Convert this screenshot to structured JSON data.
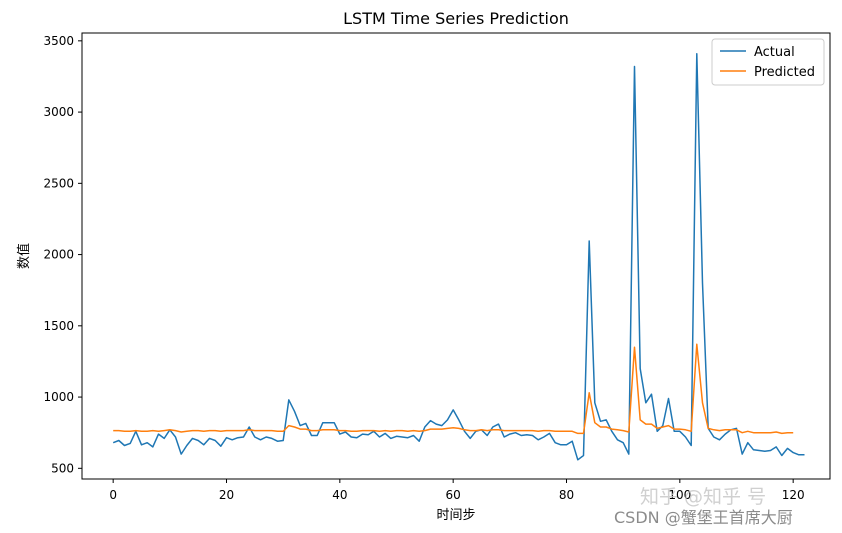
{
  "chart_data": {
    "type": "line",
    "title": "LSTM Time Series Prediction",
    "xlabel": "时间步",
    "ylabel": "数值",
    "xlim": [
      -5.5,
      126.5
    ],
    "ylim": [
      425,
      3555
    ],
    "xticks": [
      0,
      20,
      40,
      60,
      80,
      100,
      120
    ],
    "yticks": [
      500,
      1000,
      1500,
      2000,
      2500,
      3000,
      3500
    ],
    "grid": false,
    "legend_position": "top-right",
    "series": [
      {
        "name": "Actual",
        "color": "#1f77b4",
        "x_start": 0,
        "values": [
          680,
          695,
          660,
          675,
          760,
          665,
          680,
          650,
          740,
          710,
          770,
          720,
          600,
          660,
          710,
          695,
          665,
          710,
          695,
          655,
          715,
          700,
          715,
          720,
          790,
          720,
          700,
          720,
          710,
          690,
          695,
          980,
          900,
          800,
          815,
          730,
          730,
          820,
          820,
          820,
          740,
          755,
          720,
          715,
          740,
          735,
          760,
          720,
          745,
          710,
          725,
          720,
          715,
          730,
          690,
          790,
          835,
          810,
          800,
          840,
          910,
          840,
          760,
          710,
          760,
          770,
          730,
          790,
          810,
          720,
          740,
          750,
          730,
          735,
          730,
          700,
          720,
          745,
          680,
          665,
          665,
          690,
          560,
          590,
          2095,
          960,
          830,
          840,
          760,
          700,
          680,
          600,
          3320,
          1200,
          960,
          1020,
          760,
          800,
          990,
          760,
          760,
          720,
          660,
          3410,
          1800,
          780,
          720,
          700,
          740,
          770,
          780,
          600,
          680,
          630,
          625,
          620,
          625,
          650,
          590,
          640,
          610,
          595,
          595
        ]
      },
      {
        "name": "Predicted",
        "color": "#ff7f0e",
        "x_start": 0,
        "values": [
          765,
          765,
          760,
          760,
          765,
          760,
          760,
          765,
          760,
          765,
          770,
          765,
          755,
          760,
          765,
          765,
          760,
          765,
          765,
          760,
          765,
          765,
          765,
          765,
          770,
          765,
          765,
          765,
          765,
          760,
          760,
          800,
          790,
          775,
          775,
          765,
          765,
          770,
          770,
          770,
          765,
          765,
          760,
          760,
          765,
          765,
          765,
          760,
          765,
          760,
          765,
          765,
          760,
          765,
          760,
          765,
          775,
          775,
          775,
          780,
          785,
          780,
          770,
          765,
          765,
          770,
          765,
          770,
          770,
          765,
          765,
          765,
          765,
          765,
          765,
          760,
          765,
          765,
          760,
          760,
          760,
          760,
          745,
          745,
          1030,
          820,
          790,
          790,
          775,
          770,
          765,
          755,
          1350,
          840,
          810,
          810,
          780,
          790,
          800,
          775,
          775,
          770,
          760,
          1370,
          960,
          780,
          770,
          765,
          770,
          770,
          770,
          750,
          760,
          750,
          750,
          750,
          750,
          755,
          745,
          750,
          750
        ]
      }
    ]
  },
  "watermarks": [
    "知乎 @知乎 号",
    "CSDN @蟹堡王首席大厨"
  ]
}
